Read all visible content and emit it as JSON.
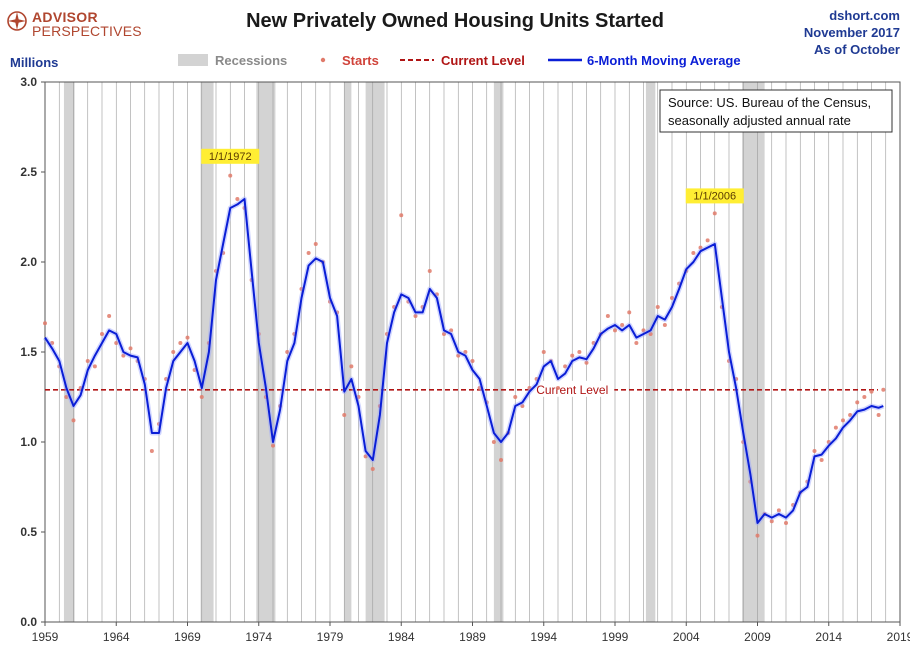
{
  "header": {
    "logo_line1": "ADVISOR",
    "logo_line2": "PERSPECTIVES",
    "title": "New Privately Owned Housing Units Started",
    "source_site": "dshort.com",
    "date_line": "November 2017",
    "as_of": "As of October"
  },
  "colors": {
    "recession": "#d3d3d3",
    "starts": "#e07a6a",
    "current_level": "#b01515",
    "moving_average": "#0a1ed6",
    "meta_text": "#1f3a93",
    "logo": "#b0462f"
  },
  "chart_data": {
    "type": "line",
    "ylabel": "Millions",
    "ylim": [
      0,
      3.0
    ],
    "yticks": [
      "0.0",
      "0.5",
      "1.0",
      "1.5",
      "2.0",
      "2.5",
      "3.0"
    ],
    "xlim": [
      1959,
      2019
    ],
    "xticks": [
      "1959",
      "1964",
      "1969",
      "1974",
      "1979",
      "1984",
      "1989",
      "1994",
      "1999",
      "2004",
      "2009",
      "2014",
      "2019"
    ],
    "grid": "vertical",
    "legend_position": "top",
    "legend": [
      "Recessions",
      "Starts",
      "Current Level",
      "6-Month Moving Average"
    ],
    "note": "Source: US. Bureau of the Census, seasonally adjusted annual rate",
    "current_level": 1.29,
    "current_level_label": "Current Level",
    "annotations": [
      {
        "label": "1/1/1972",
        "x": 1972.0,
        "y": 2.49
      },
      {
        "label": "1/1/2006",
        "x": 2006.0,
        "y": 2.27
      }
    ],
    "recessions": [
      [
        1960.33,
        1961.08
      ],
      [
        1969.92,
        1970.83
      ],
      [
        1973.83,
        1975.17
      ],
      [
        1980.0,
        1980.5
      ],
      [
        1981.5,
        1982.83
      ],
      [
        1990.5,
        1991.17
      ],
      [
        2001.17,
        2001.83
      ],
      [
        2007.92,
        2009.5
      ]
    ],
    "series": [
      {
        "name": "6-Month Moving Average",
        "x": [
          1959.0,
          1959.5,
          1960.0,
          1960.5,
          1961.0,
          1961.5,
          1962.0,
          1962.5,
          1963.0,
          1963.5,
          1964.0,
          1964.5,
          1965.0,
          1965.5,
          1966.0,
          1966.5,
          1967.0,
          1967.5,
          1968.0,
          1968.5,
          1969.0,
          1969.5,
          1970.0,
          1970.5,
          1971.0,
          1971.5,
          1972.0,
          1972.5,
          1973.0,
          1973.5,
          1974.0,
          1974.5,
          1975.0,
          1975.5,
          1976.0,
          1976.5,
          1977.0,
          1977.5,
          1978.0,
          1978.5,
          1979.0,
          1979.5,
          1980.0,
          1980.5,
          1981.0,
          1981.5,
          1982.0,
          1982.5,
          1983.0,
          1983.5,
          1984.0,
          1984.5,
          1985.0,
          1985.5,
          1986.0,
          1986.5,
          1987.0,
          1987.5,
          1988.0,
          1988.5,
          1989.0,
          1989.5,
          1990.0,
          1990.5,
          1991.0,
          1991.5,
          1992.0,
          1992.5,
          1993.0,
          1993.5,
          1994.0,
          1994.5,
          1995.0,
          1995.5,
          1996.0,
          1996.5,
          1997.0,
          1997.5,
          1998.0,
          1998.5,
          1999.0,
          1999.5,
          2000.0,
          2000.5,
          2001.0,
          2001.5,
          2002.0,
          2002.5,
          2003.0,
          2003.5,
          2004.0,
          2004.5,
          2005.0,
          2005.5,
          2006.0,
          2006.5,
          2007.0,
          2007.5,
          2008.0,
          2008.5,
          2009.0,
          2009.5,
          2010.0,
          2010.5,
          2011.0,
          2011.5,
          2012.0,
          2012.5,
          2013.0,
          2013.5,
          2014.0,
          2014.5,
          2015.0,
          2015.5,
          2016.0,
          2016.5,
          2017.0,
          2017.5,
          2017.83
        ],
        "y": [
          1.58,
          1.52,
          1.45,
          1.3,
          1.2,
          1.26,
          1.4,
          1.48,
          1.55,
          1.62,
          1.6,
          1.5,
          1.48,
          1.47,
          1.32,
          1.05,
          1.05,
          1.3,
          1.45,
          1.5,
          1.55,
          1.45,
          1.3,
          1.5,
          1.9,
          2.1,
          2.3,
          2.32,
          2.35,
          1.95,
          1.55,
          1.3,
          1.0,
          1.18,
          1.45,
          1.55,
          1.8,
          1.98,
          2.02,
          2.0,
          1.8,
          1.7,
          1.28,
          1.35,
          1.2,
          0.95,
          0.9,
          1.15,
          1.55,
          1.72,
          1.82,
          1.8,
          1.72,
          1.72,
          1.85,
          1.8,
          1.62,
          1.6,
          1.5,
          1.48,
          1.4,
          1.35,
          1.2,
          1.05,
          1.0,
          1.05,
          1.2,
          1.22,
          1.28,
          1.32,
          1.42,
          1.45,
          1.35,
          1.38,
          1.45,
          1.47,
          1.46,
          1.52,
          1.6,
          1.63,
          1.65,
          1.62,
          1.65,
          1.58,
          1.6,
          1.62,
          1.7,
          1.68,
          1.75,
          1.85,
          1.96,
          2.0,
          2.06,
          2.08,
          2.1,
          1.8,
          1.5,
          1.3,
          1.05,
          0.82,
          0.55,
          0.6,
          0.58,
          0.6,
          0.58,
          0.62,
          0.72,
          0.75,
          0.92,
          0.93,
          0.98,
          1.02,
          1.08,
          1.12,
          1.17,
          1.18,
          1.2,
          1.19,
          1.2
        ]
      },
      {
        "name": "Starts",
        "x": [
          1959.0,
          1959.5,
          1960.0,
          1960.5,
          1961.0,
          1961.5,
          1962.0,
          1962.5,
          1963.0,
          1963.5,
          1964.0,
          1964.5,
          1965.0,
          1965.5,
          1966.0,
          1966.5,
          1967.0,
          1967.5,
          1968.0,
          1968.5,
          1969.0,
          1969.5,
          1970.0,
          1970.5,
          1971.0,
          1971.5,
          1972.0,
          1972.5,
          1973.0,
          1973.5,
          1974.0,
          1974.5,
          1975.0,
          1975.5,
          1976.0,
          1976.5,
          1977.0,
          1977.5,
          1978.0,
          1978.5,
          1979.0,
          1979.5,
          1980.0,
          1980.5,
          1981.0,
          1981.5,
          1982.0,
          1982.5,
          1983.0,
          1983.5,
          1984.0,
          1984.5,
          1985.0,
          1985.5,
          1986.0,
          1986.5,
          1987.0,
          1987.5,
          1988.0,
          1988.5,
          1989.0,
          1989.5,
          1990.0,
          1990.5,
          1991.0,
          1991.5,
          1992.0,
          1992.5,
          1993.0,
          1993.5,
          1994.0,
          1994.5,
          1995.0,
          1995.5,
          1996.0,
          1996.5,
          1997.0,
          1997.5,
          1998.0,
          1998.5,
          1999.0,
          1999.5,
          2000.0,
          2000.5,
          2001.0,
          2001.5,
          2002.0,
          2002.5,
          2003.0,
          2003.5,
          2004.0,
          2004.5,
          2005.0,
          2005.5,
          2006.0,
          2006.5,
          2007.0,
          2007.5,
          2008.0,
          2008.5,
          2009.0,
          2009.5,
          2010.0,
          2010.5,
          2011.0,
          2011.5,
          2012.0,
          2012.5,
          2013.0,
          2013.5,
          2014.0,
          2014.5,
          2015.0,
          2015.5,
          2016.0,
          2016.5,
          2017.0,
          2017.5,
          2017.83
        ],
        "y": [
          1.66,
          1.55,
          1.42,
          1.25,
          1.12,
          1.3,
          1.45,
          1.42,
          1.6,
          1.7,
          1.55,
          1.48,
          1.52,
          1.45,
          1.35,
          0.95,
          1.1,
          1.35,
          1.5,
          1.55,
          1.58,
          1.4,
          1.25,
          1.55,
          1.95,
          2.05,
          2.48,
          2.35,
          2.3,
          1.9,
          1.6,
          1.25,
          0.98,
          1.2,
          1.5,
          1.6,
          1.85,
          2.05,
          2.1,
          2.0,
          1.78,
          1.72,
          1.15,
          1.42,
          1.25,
          0.92,
          0.85,
          1.2,
          1.6,
          1.75,
          2.26,
          1.78,
          1.7,
          1.75,
          1.95,
          1.82,
          1.6,
          1.62,
          1.48,
          1.5,
          1.45,
          1.3,
          1.22,
          1.0,
          0.9,
          1.05,
          1.25,
          1.2,
          1.3,
          1.35,
          1.5,
          1.45,
          1.3,
          1.42,
          1.48,
          1.5,
          1.44,
          1.55,
          1.6,
          1.7,
          1.62,
          1.65,
          1.72,
          1.55,
          1.62,
          1.6,
          1.75,
          1.65,
          1.8,
          1.88,
          1.95,
          2.05,
          2.08,
          2.12,
          2.27,
          1.75,
          1.45,
          1.35,
          1.0,
          0.78,
          0.48,
          0.6,
          0.56,
          0.62,
          0.55,
          0.65,
          0.72,
          0.78,
          0.95,
          0.9,
          1.0,
          1.08,
          1.12,
          1.15,
          1.22,
          1.25,
          1.28,
          1.15,
          1.29
        ]
      }
    ]
  }
}
